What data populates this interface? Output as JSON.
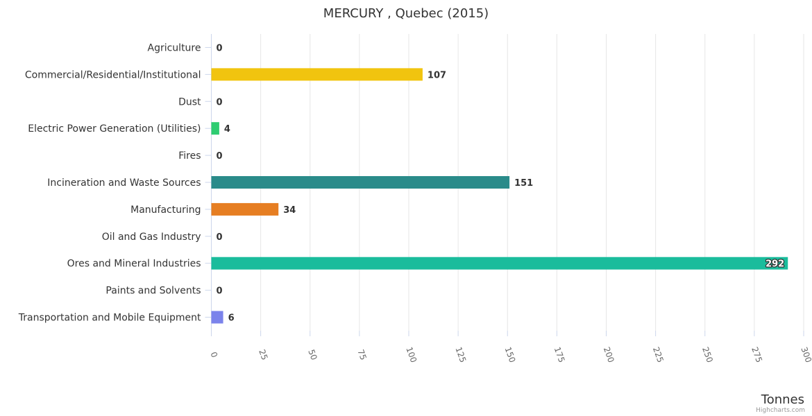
{
  "chart_data": {
    "type": "bar",
    "orientation": "horizontal",
    "title": "MERCURY , Quebec (2015)",
    "xlabel": "",
    "ylabel": "Tonnes",
    "categories": [
      "Agriculture",
      "Commercial/Residential/Institutional",
      "Dust",
      "Electric Power Generation (Utilities)",
      "Fires",
      "Incineration and Waste Sources",
      "Manufacturing",
      "Oil and Gas Industry",
      "Ores and Mineral Industries",
      "Paints and Solvents",
      "Transportation and Mobile Equipment"
    ],
    "values": [
      0,
      107,
      0,
      4,
      0,
      151,
      34,
      0,
      292,
      0,
      6
    ],
    "value_labels": [
      "0",
      "107",
      "0",
      "4",
      "0",
      "151",
      "34",
      "0",
      "292",
      "0",
      "6"
    ],
    "colors": [
      "#2ecc71",
      "#f1c40f",
      "#95a5a6",
      "#2ecc71",
      "#e74c3c",
      "#2a8b8a",
      "#e67e22",
      "#7f8c8d",
      "#1abc9c",
      "#9b59b6",
      "#7b83eb"
    ],
    "ylim": [
      0,
      300
    ],
    "ticks": [
      0,
      25,
      50,
      75,
      100,
      125,
      150,
      175,
      200,
      225,
      250,
      275,
      300
    ],
    "tick_labels": [
      "0",
      "25",
      "50",
      "75",
      "100",
      "125",
      "150",
      "175",
      "200",
      "225",
      "250",
      "275",
      "300"
    ],
    "grid": true,
    "legend": "none"
  },
  "credits": "Highcharts.com"
}
